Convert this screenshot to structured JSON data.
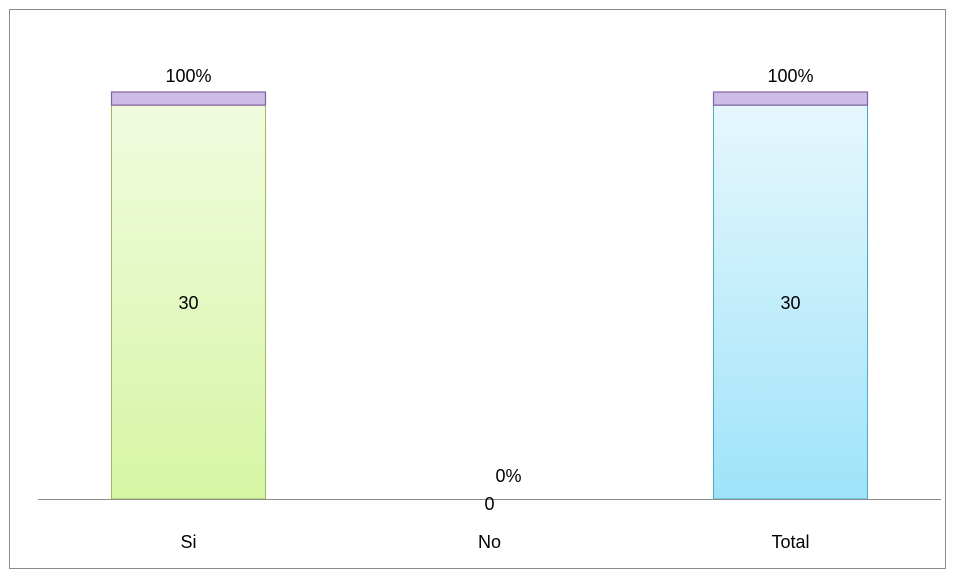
{
  "chart_data": {
    "type": "bar",
    "stacked": true,
    "categories": [
      "Si",
      "No",
      "Total"
    ],
    "series": [
      {
        "values": [
          30,
          0,
          30
        ]
      },
      {
        "values": [
          1,
          0,
          1
        ]
      }
    ],
    "count_labels": [
      "30",
      "0",
      "30"
    ],
    "percent_labels": [
      "100%",
      "0%",
      "100%"
    ],
    "ylim": [
      0,
      31
    ],
    "grid": false,
    "legend": "none",
    "colors": {
      "count_fills": [
        [
          "#f1fbdf",
          "#d6f5a4"
        ],
        [
          "#ffffff",
          "#ffffff"
        ],
        [
          "#e6f7fd",
          "#9fe3f9"
        ]
      ],
      "count_strokes": [
        "#9bbb59",
        "#9bbb59",
        "#4bacc6"
      ],
      "percent_fill": "#cdbde6",
      "percent_stroke": "#7f62a3",
      "axis": "#8c8c8c"
    }
  }
}
